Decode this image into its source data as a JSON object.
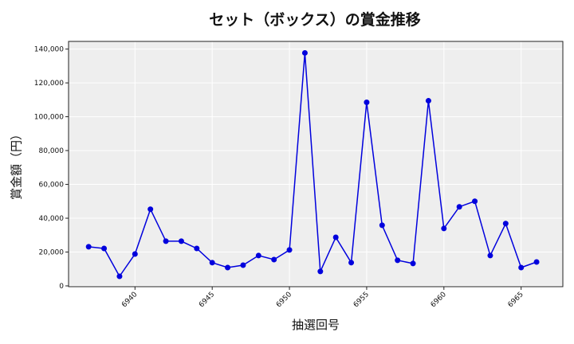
{
  "chart_data": {
    "type": "line",
    "title": "セット（ボックス）の賞金推移",
    "xlabel": "抽選回号",
    "ylabel": "賞金額（円）",
    "x": [
      6937,
      6938,
      6939,
      6940,
      6941,
      6942,
      6943,
      6944,
      6945,
      6946,
      6947,
      6948,
      6949,
      6950,
      6951,
      6952,
      6953,
      6954,
      6955,
      6956,
      6957,
      6958,
      6959,
      6960,
      6961,
      6962,
      6963,
      6964,
      6965,
      6966
    ],
    "series": [
      {
        "name": "セット（ボックス）",
        "color": "#0000dd",
        "values": [
          23600,
          22600,
          6100,
          19300,
          45800,
          26900,
          26900,
          22600,
          14200,
          11300,
          12700,
          18400,
          16000,
          21700,
          138200,
          9000,
          29200,
          14200,
          109000,
          36300,
          15600,
          13700,
          109900,
          34400,
          47200,
          50500,
          18400,
          37300,
          11300,
          14600
        ]
      }
    ],
    "xticks": [
      "6940",
      "6945",
      "6950",
      "6955",
      "6960",
      "6965"
    ],
    "yticks": [
      "0",
      "20,000",
      "40,000",
      "60,000",
      "80,000",
      "100,000",
      "120,000",
      "140,000"
    ],
    "ylim": [
      0,
      145000
    ],
    "xlim": [
      6935.7,
      6967.7
    ],
    "grid": true,
    "background": "#eeeeee"
  }
}
